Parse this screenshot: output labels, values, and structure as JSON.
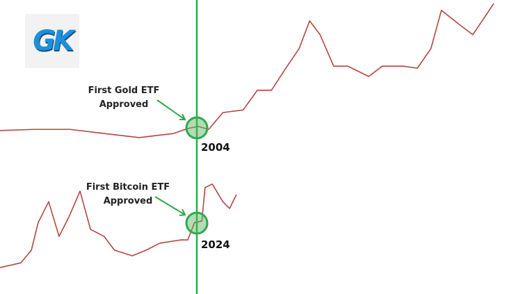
{
  "logo": "GK",
  "chart_data": {
    "type": "line",
    "xlim": [
      0,
      100
    ],
    "ylim": [
      0,
      100
    ],
    "series": [
      {
        "color": "#b4463f",
        "x": [
          0,
          6.6,
          13.3,
          19.9,
          26.6,
          33.2,
          35.9,
          37.9,
          39.9,
          42.6,
          46.5,
          49.2,
          51.9,
          54.5,
          57.2,
          59.2,
          61.2,
          63.8,
          66.5,
          70.5,
          73.1,
          77.1,
          79.8,
          82.4,
          84.4,
          87.8,
          90.4,
          93.1,
          94.4
        ],
        "values": [
          55.6,
          56.0,
          56.0,
          54.6,
          53.2,
          54.6,
          56.3,
          57.0,
          56.0,
          61.7,
          62.6,
          69.3,
          69.3,
          76.4,
          83.5,
          92.9,
          88.2,
          77.5,
          77.5,
          74.0,
          77.5,
          77.5,
          76.8,
          83.5,
          96.5,
          91.7,
          88.2,
          95.3,
          98.8
        ]
      },
      {
        "color": "#b4463f",
        "x": [
          0,
          4.0,
          6.0,
          7.3,
          9.3,
          11.3,
          13.3,
          15.3,
          17.3,
          19.9,
          21.9,
          25.3,
          27.9,
          30.6,
          34.6,
          35.9,
          37.2,
          38.6,
          39.2,
          40.6,
          42.6,
          43.9,
          45.2
        ],
        "values": [
          9.0,
          10.6,
          14.9,
          24.3,
          31.4,
          19.6,
          26.7,
          35.0,
          22.0,
          19.6,
          14.9,
          13.0,
          14.9,
          17.3,
          18.4,
          18.4,
          24.3,
          24.8,
          36.2,
          37.4,
          31.4,
          29.1,
          33.8
        ]
      }
    ],
    "annotations": [
      {
        "text": "First Gold ETF Approved",
        "year": "2004"
      },
      {
        "text": "First Bitcoin ETF Approved",
        "year": "2024"
      }
    ]
  }
}
